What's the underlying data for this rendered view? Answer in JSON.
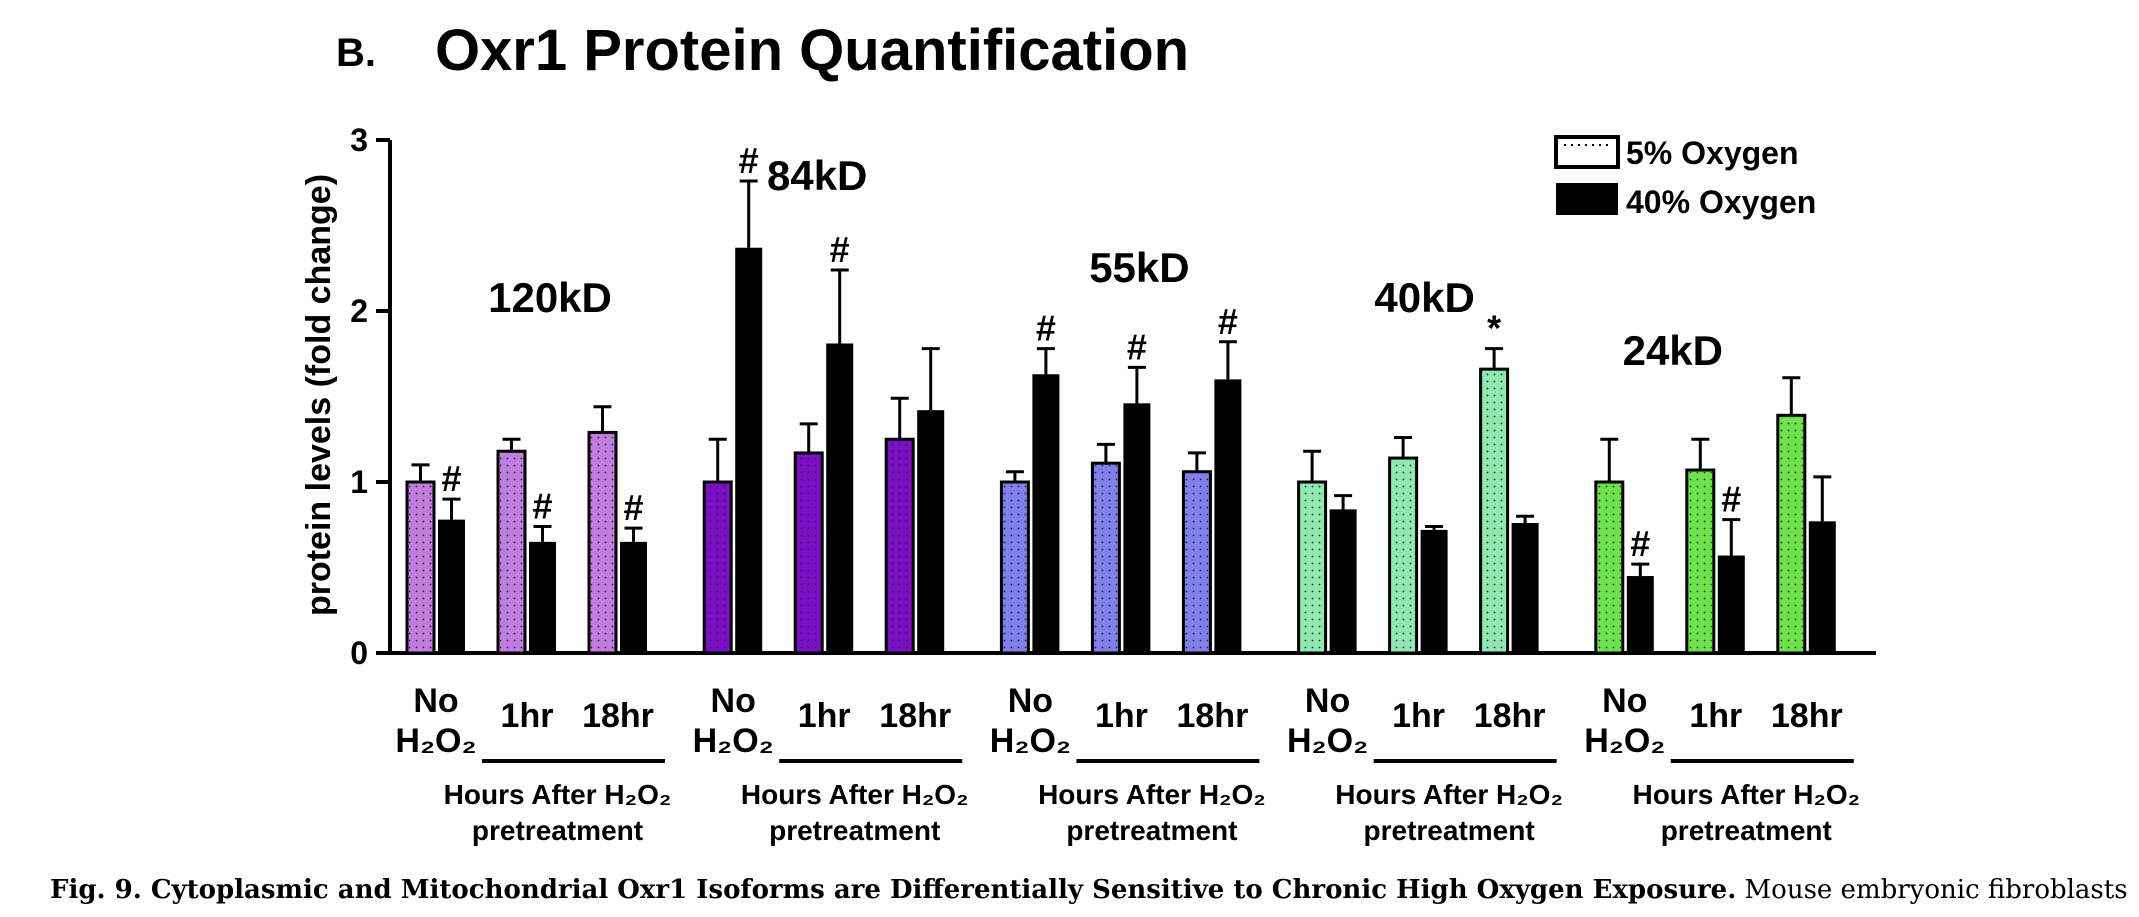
{
  "panel_label": "B.",
  "caption": {
    "bold": "Fig. 9. Cytoplasmic and Mitochondrial Oxr1 Isoforms are Differentially Sensitive to Chronic High Oxygen Exposure.",
    "normal": " Mouse embryonic fibroblasts (MEF) cells"
  },
  "chart_data": {
    "type": "bar",
    "title": "Oxr1 Protein Quantification",
    "ylabel": "protein levels (fold change)",
    "xlabel": "",
    "ylim": [
      0,
      3
    ],
    "yticks": [
      0,
      1,
      2,
      3
    ],
    "grid": false,
    "legend_position": "top-right",
    "legend": [
      {
        "label": "5% Oxygen",
        "style": "dotted-outline"
      },
      {
        "label": "40% Oxygen",
        "style": "solid-black"
      }
    ],
    "group_label_lines": [
      "Hours After H₂O₂",
      "pretreatment"
    ],
    "groups": [
      {
        "isoform": "120kD",
        "color": "#c27ce0",
        "conditions": [
          {
            "label": "No H₂O₂",
            "five": {
              "value": 1.0,
              "err": 0.1,
              "mark": ""
            },
            "forty": {
              "value": 0.78,
              "err": 0.12,
              "mark": "#"
            }
          },
          {
            "label": "1hr",
            "five": {
              "value": 1.18,
              "err": 0.07,
              "mark": ""
            },
            "forty": {
              "value": 0.65,
              "err": 0.09,
              "mark": "#"
            }
          },
          {
            "label": "18hr",
            "five": {
              "value": 1.29,
              "err": 0.15,
              "mark": ""
            },
            "forty": {
              "value": 0.65,
              "err": 0.08,
              "mark": "#"
            }
          }
        ]
      },
      {
        "isoform": "84kD",
        "color": "#7b0fc6",
        "conditions": [
          {
            "label": "No H₂O₂",
            "five": {
              "value": 1.0,
              "err": 0.25,
              "mark": ""
            },
            "forty": {
              "value": 2.37,
              "err": 0.39,
              "mark": "#"
            }
          },
          {
            "label": "1hr",
            "five": {
              "value": 1.17,
              "err": 0.17,
              "mark": ""
            },
            "forty": {
              "value": 1.81,
              "err": 0.43,
              "mark": "#"
            }
          },
          {
            "label": "18hr",
            "five": {
              "value": 1.25,
              "err": 0.24,
              "mark": ""
            },
            "forty": {
              "value": 1.42,
              "err": 0.36,
              "mark": ""
            }
          }
        ]
      },
      {
        "isoform": "55kD",
        "color": "#8080ec",
        "conditions": [
          {
            "label": "No H₂O₂",
            "five": {
              "value": 1.0,
              "err": 0.06,
              "mark": ""
            },
            "forty": {
              "value": 1.63,
              "err": 0.15,
              "mark": "#"
            }
          },
          {
            "label": "1hr",
            "five": {
              "value": 1.11,
              "err": 0.11,
              "mark": ""
            },
            "forty": {
              "value": 1.46,
              "err": 0.21,
              "mark": "#"
            }
          },
          {
            "label": "18hr",
            "five": {
              "value": 1.06,
              "err": 0.11,
              "mark": ""
            },
            "forty": {
              "value": 1.6,
              "err": 0.22,
              "mark": "#"
            }
          }
        ]
      },
      {
        "isoform": "40kD",
        "color": "#8ee8b0",
        "conditions": [
          {
            "label": "No H₂O₂",
            "five": {
              "value": 1.0,
              "err": 0.18,
              "mark": ""
            },
            "forty": {
              "value": 0.84,
              "err": 0.08,
              "mark": ""
            }
          },
          {
            "label": "1hr",
            "five": {
              "value": 1.14,
              "err": 0.12,
              "mark": ""
            },
            "forty": {
              "value": 0.72,
              "err": 0.02,
              "mark": ""
            }
          },
          {
            "label": "18hr",
            "five": {
              "value": 1.66,
              "err": 0.12,
              "mark": "*"
            },
            "forty": {
              "value": 0.76,
              "err": 0.04,
              "mark": ""
            }
          }
        ]
      },
      {
        "isoform": "24kD",
        "color": "#6ee24a",
        "conditions": [
          {
            "label": "No H₂O₂",
            "five": {
              "value": 1.0,
              "err": 0.25,
              "mark": ""
            },
            "forty": {
              "value": 0.45,
              "err": 0.07,
              "mark": "#"
            }
          },
          {
            "label": "1hr",
            "five": {
              "value": 1.07,
              "err": 0.18,
              "mark": ""
            },
            "forty": {
              "value": 0.57,
              "err": 0.21,
              "mark": "#"
            }
          },
          {
            "label": "18hr",
            "five": {
              "value": 1.39,
              "err": 0.22,
              "mark": ""
            },
            "forty": {
              "value": 0.77,
              "err": 0.26,
              "mark": ""
            }
          }
        ]
      }
    ]
  }
}
